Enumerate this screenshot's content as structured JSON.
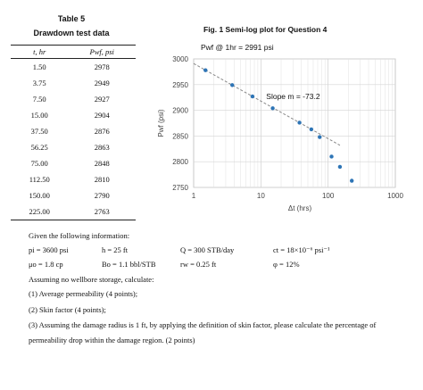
{
  "table": {
    "title": "Table 5",
    "subtitle": "Drawdown test data",
    "headers": [
      "t, hr",
      "Pwf, psi"
    ],
    "rows": [
      [
        "1.50",
        "2978"
      ],
      [
        "3.75",
        "2949"
      ],
      [
        "7.50",
        "2927"
      ],
      [
        "15.00",
        "2904"
      ],
      [
        "37.50",
        "2876"
      ],
      [
        "56.25",
        "2863"
      ],
      [
        "75.00",
        "2848"
      ],
      [
        "112.50",
        "2810"
      ],
      [
        "150.00",
        "2790"
      ],
      [
        "225.00",
        "2763"
      ]
    ]
  },
  "figure": {
    "title": "Fig. 1 Semi-log plot for Question 4",
    "annotation_top": "Pwf @ 1hr = 2991 psi",
    "annotation_slope": "Slope m = -73.2"
  },
  "chart_data": {
    "type": "scatter",
    "title": "Fig. 1 Semi-log plot for Question 4",
    "xlabel": "Δt (hrs)",
    "ylabel": "Pwf (psi)",
    "xscale": "log",
    "xlim": [
      1,
      1000
    ],
    "ylim": [
      2750,
      3000
    ],
    "xticks": [
      "1",
      "10",
      "100",
      "1000"
    ],
    "yticks": [
      "2750",
      "2800",
      "2850",
      "2900",
      "2950",
      "3000"
    ],
    "grid": true,
    "points": {
      "x": [
        1.5,
        3.75,
        7.5,
        15,
        37.5,
        56.25,
        75,
        112.5,
        150,
        225
      ],
      "y": [
        2978,
        2949,
        2927,
        2904,
        2876,
        2863,
        2848,
        2810,
        2790,
        2763
      ]
    },
    "trendline": {
      "x": [
        1,
        150
      ],
      "y": [
        2991,
        2832
      ]
    },
    "annotations": [
      "Pwf @ 1hr = 2991 psi",
      "Slope m = -73.2"
    ],
    "colors": {
      "points": "#2e75b6",
      "trendline": "#888888"
    }
  },
  "problem": {
    "intro": "Given the following information:",
    "params_row1": [
      "pi = 3600 psi",
      "h = 25 ft",
      "Q = 300 STB/day",
      "ct = 18×10⁻⁶ psi⁻¹"
    ],
    "params_row2": [
      "μo = 1.8 cp",
      "Bo = 1.1 bbl/STB",
      "rw = 0.25 ft",
      "φ = 12%"
    ],
    "assumption": "Assuming no wellbore storage, calculate:",
    "q1": "(1) Average permeability (4 points);",
    "q2": "(2) Skin factor (4 points);",
    "q3_line1": "(3) Assuming the damage radius is 1 ft, by applying the definition of skin factor, please calculate the percentage of",
    "q3_line2": "permeability drop within the damage region. (2 points)"
  }
}
